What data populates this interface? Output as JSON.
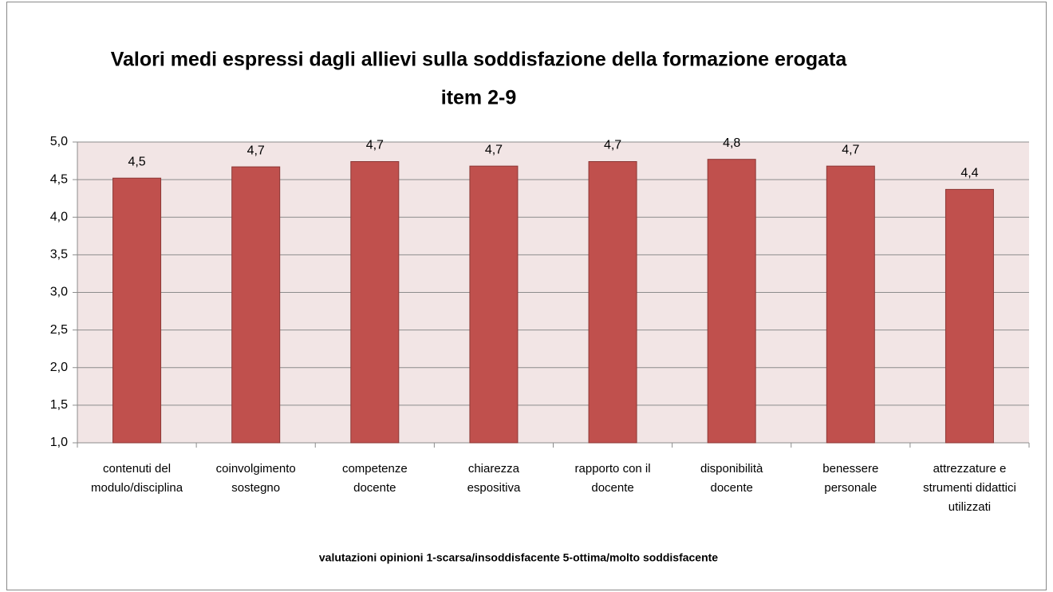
{
  "chart_data": {
    "type": "bar",
    "title": "Valori medi espressi dagli allievi sulla soddisfazione della formazione erogata",
    "subtitle": "item 2-9",
    "x_label": "valutazioni opinioni  1-scarsa/insoddisfacente 5-ottima/molto soddisfacente",
    "categories": [
      [
        "contenuti del",
        "modulo/disciplina"
      ],
      [
        "coinvolgimento",
        "sostegno"
      ],
      [
        "competenze",
        "docente"
      ],
      [
        "chiarezza",
        "espositiva"
      ],
      [
        "rapporto con il",
        "docente"
      ],
      [
        "disponibilità",
        "docente"
      ],
      [
        "benessere",
        "personale"
      ],
      [
        "attrezzature e",
        "strumenti didattici",
        "utilizzati"
      ]
    ],
    "values": [
      4.52,
      4.67,
      4.74,
      4.68,
      4.74,
      4.77,
      4.68,
      4.37
    ],
    "value_labels": [
      "4,5",
      "4,7",
      "4,7",
      "4,7",
      "4,7",
      "4,8",
      "4,7",
      "4,4"
    ],
    "color": "#c0504d",
    "ylim": [
      1,
      5
    ],
    "yticks": [
      {
        "value": 1,
        "label": "1,0"
      },
      {
        "value": 1.5,
        "label": "1,5"
      },
      {
        "value": 2,
        "label": "2,0"
      },
      {
        "value": 2.5,
        "label": "2,5"
      },
      {
        "value": 3,
        "label": "3,0"
      },
      {
        "value": 3.5,
        "label": "3,5"
      },
      {
        "value": 4,
        "label": "4,0"
      },
      {
        "value": 4.5,
        "label": "4,5"
      },
      {
        "value": 5,
        "label": "5,0"
      }
    ],
    "grid": true
  }
}
